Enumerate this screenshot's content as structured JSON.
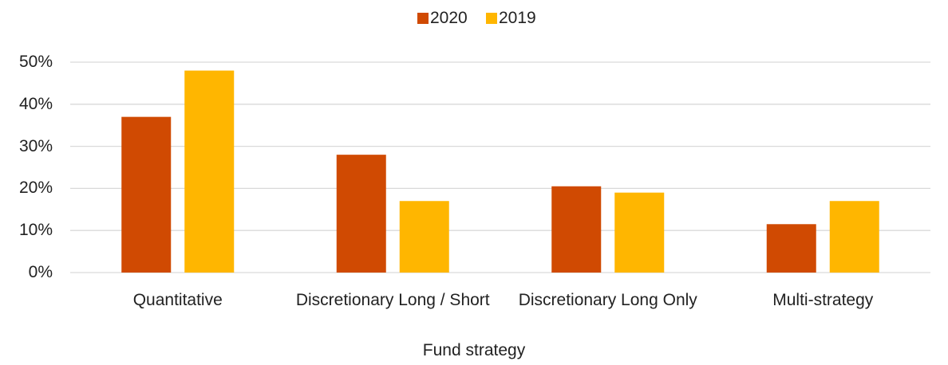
{
  "chart_data": {
    "type": "bar",
    "x_label": "Fund strategy",
    "categories": [
      "Quantitative",
      "Discretionary Long / Short",
      "Discretionary Long Only",
      "Multi-strategy"
    ],
    "series": [
      {
        "name": "2020",
        "color": "#d04a02",
        "values": [
          37,
          28,
          20.5,
          11.5
        ]
      },
      {
        "name": "2019",
        "color": "#ffb600",
        "values": [
          48,
          17,
          19,
          17
        ]
      }
    ],
    "ylim": [
      0,
      50
    ],
    "yticks": [
      {
        "value": 0,
        "label": "0%"
      },
      {
        "value": 10,
        "label": "10%"
      },
      {
        "value": 20,
        "label": "20%"
      },
      {
        "value": 30,
        "label": "30%"
      },
      {
        "value": 40,
        "label": "40%"
      },
      {
        "value": 50,
        "label": "50%"
      }
    ],
    "grid": true,
    "legend": "top"
  }
}
